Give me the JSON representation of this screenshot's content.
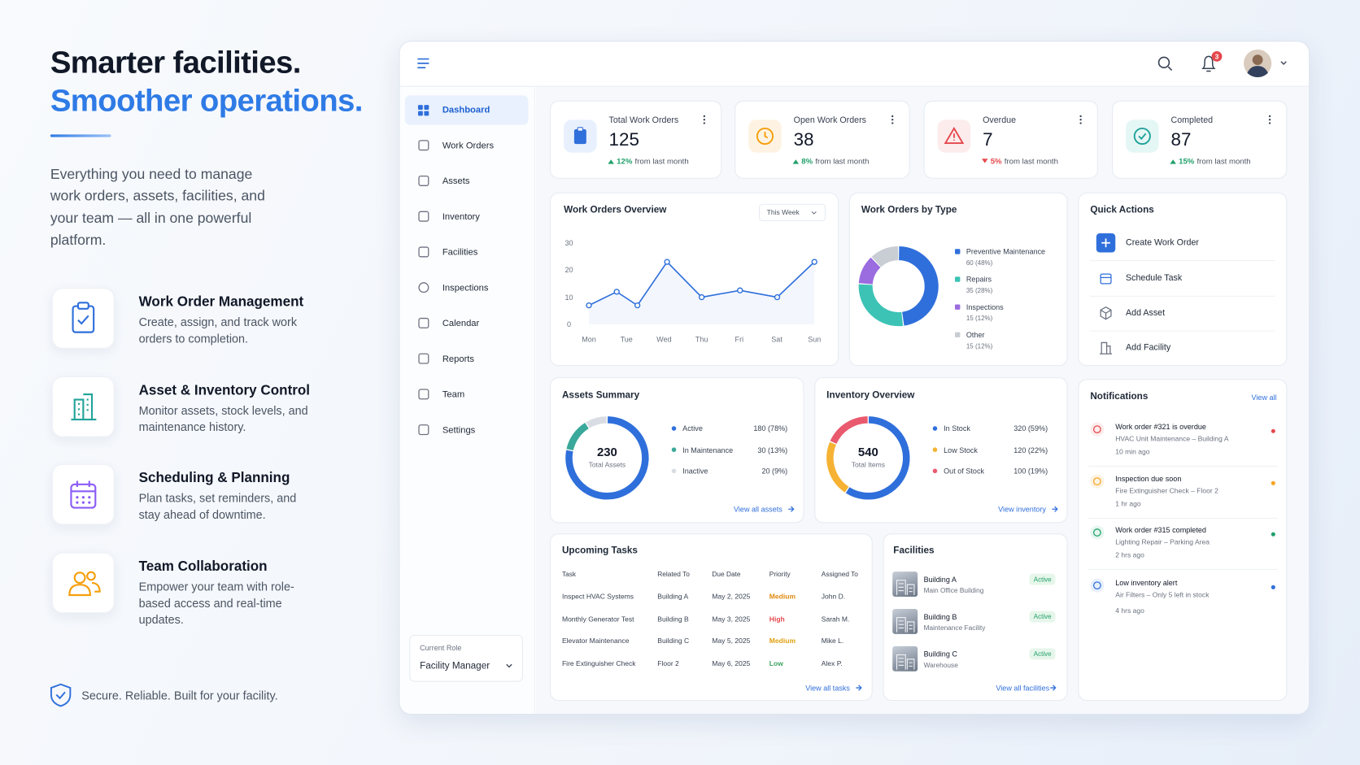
{
  "hero": {
    "title_line1": "Smarter facilities.",
    "title_line2": "Smoother operations.",
    "description": "Everything you need to manage work orders, assets, facilities, and your team — all in one powerful platform.",
    "features": [
      {
        "title": "Work Order Management",
        "text": "Create, assign, and track work orders to completion."
      },
      {
        "title": "Asset & Inventory Control",
        "text": "Monitor assets, stock levels, and maintenance history."
      },
      {
        "title": "Scheduling & Planning",
        "text": "Plan tasks, set reminders, and stay ahead of downtime."
      },
      {
        "title": "Team Collaboration",
        "text": "Empower your team with role-based access and real-time updates."
      }
    ],
    "footer": "Secure. Reliable. Built for your facility."
  },
  "header": {
    "notification_count": 3
  },
  "sidebar": {
    "items": [
      "Dashboard",
      "Work Orders",
      "Assets",
      "Inventory",
      "Facilities",
      "Inspections",
      "Calendar",
      "Reports",
      "Team",
      "Settings"
    ],
    "role_label": "Current Role",
    "role": "Facility Manager"
  },
  "stats": [
    {
      "label": "Total Work Orders",
      "value": 125,
      "change": "12%",
      "change_text": "from last month",
      "trend": "up"
    },
    {
      "label": "Open Work Orders",
      "value": 38,
      "change": "8%",
      "change_text": "from last month",
      "trend": "up"
    },
    {
      "label": "Overdue",
      "value": 7,
      "change": "5%",
      "change_text": "from last month",
      "trend": "down"
    },
    {
      "label": "Completed",
      "value": 87,
      "change": "15%",
      "change_text": "from last month",
      "trend": "up"
    }
  ],
  "quick_actions": {
    "title": "Quick Actions",
    "items": [
      "Create Work Order",
      "Schedule Task",
      "Add Asset",
      "Add Facility"
    ]
  },
  "notifications": {
    "title": "Notifications",
    "link": "View all",
    "items": [
      {
        "title": "Work order #321 is overdue",
        "detail": "HVAC Unit Maintenance – Building A",
        "time": "10 min ago"
      },
      {
        "title": "Inspection due soon",
        "detail": "Fire Extinguisher Check – Floor 2",
        "time": "1 hr ago"
      },
      {
        "title": "Work order #315 completed",
        "detail": "Lighting Repair – Parking Area",
        "time": "2 hrs ago"
      },
      {
        "title": "Low inventory alert",
        "detail": "Air Filters – Only 5 left in stock",
        "time": "4 hrs ago"
      }
    ]
  },
  "tasks": {
    "title": "Upcoming Tasks",
    "columns": [
      "Task",
      "Related To",
      "Due Date",
      "Priority",
      "Assigned To"
    ],
    "rows": [
      [
        "Inspect HVAC Systems",
        "Building A",
        "May 2, 2025",
        "Medium",
        "John D."
      ],
      [
        "Monthly Generator Test",
        "Building B",
        "May 3, 2025",
        "High",
        "Sarah M."
      ],
      [
        "Elevator Maintenance",
        "Building C",
        "May 5, 2025",
        "Medium",
        "Mike L."
      ],
      [
        "Fire Extinguisher Check",
        "Floor 2",
        "May 6, 2025",
        "Low",
        "Alex P."
      ]
    ],
    "link": "View all tasks"
  },
  "facilities": {
    "title": "Facilities",
    "items": [
      {
        "name": "Building A",
        "type": "Main Office Building",
        "status": "Active"
      },
      {
        "name": "Building B",
        "type": "Maintenance Facility",
        "status": "Active"
      },
      {
        "name": "Building C",
        "type": "Warehouse",
        "status": "Active"
      }
    ],
    "link": "View all facilities"
  },
  "chart_data": [
    {
      "type": "line",
      "title": "Work Orders Overview",
      "period": "This Week",
      "x": [
        0,
        0.74,
        1.29,
        2.08,
        3,
        4.02,
        5.01,
        6
      ],
      "values": [
        7,
        12,
        7,
        23,
        10,
        12.5,
        10,
        23
      ],
      "xlim": [
        0,
        6
      ],
      "xticks": [
        {
          "value": 0,
          "label": "Mon"
        },
        {
          "value": 1,
          "label": "Tue"
        },
        {
          "value": 2,
          "label": "Wed"
        },
        {
          "value": 3,
          "label": "Thu"
        },
        {
          "value": 4,
          "label": "Fri"
        },
        {
          "value": 5,
          "label": "Sat"
        },
        {
          "value": 6,
          "label": "Sun"
        }
      ],
      "ylim": [
        0,
        30
      ],
      "yticks": [
        0,
        10,
        20,
        30
      ],
      "color": "#2f6fdb",
      "grid": false
    },
    {
      "type": "pie",
      "hole": true,
      "title": "Work Orders by Type",
      "categories": [
        "Preventive Maintenance",
        "Repairs",
        "Inspections",
        "Other"
      ],
      "values": [
        60,
        35,
        15,
        15
      ],
      "value_labels": [
        "60 (48%)",
        "35 (28%)",
        "15 (12%)",
        "15 (12%)"
      ],
      "colors": [
        "#2f6fdb",
        "#3cc3b5",
        "#9b6be0",
        "#c9cdd4"
      ]
    },
    {
      "type": "pie",
      "hole": true,
      "title": "Assets Summary",
      "total": 230,
      "total_label": "Total Assets",
      "categories": [
        "Active",
        "In Maintenance",
        "Inactive"
      ],
      "values": [
        180,
        30,
        20
      ],
      "value_labels": [
        "180 (78%)",
        "30 (13%)",
        "20 (9%)"
      ],
      "colors": [
        "#2f6fdb",
        "#3aa89a",
        "#d9dde3"
      ],
      "link": "View all assets"
    },
    {
      "type": "pie",
      "hole": true,
      "title": "Inventory Overview",
      "total": 540,
      "total_label": "Total Items",
      "categories": [
        "In Stock",
        "Low Stock",
        "Out of Stock"
      ],
      "values": [
        320,
        120,
        100
      ],
      "value_labels": [
        "320 (59%)",
        "120 (22%)",
        "100 (19%)"
      ],
      "colors": [
        "#2f6fdb",
        "#f5b233",
        "#ea5a6e"
      ],
      "link": "View inventory"
    }
  ]
}
